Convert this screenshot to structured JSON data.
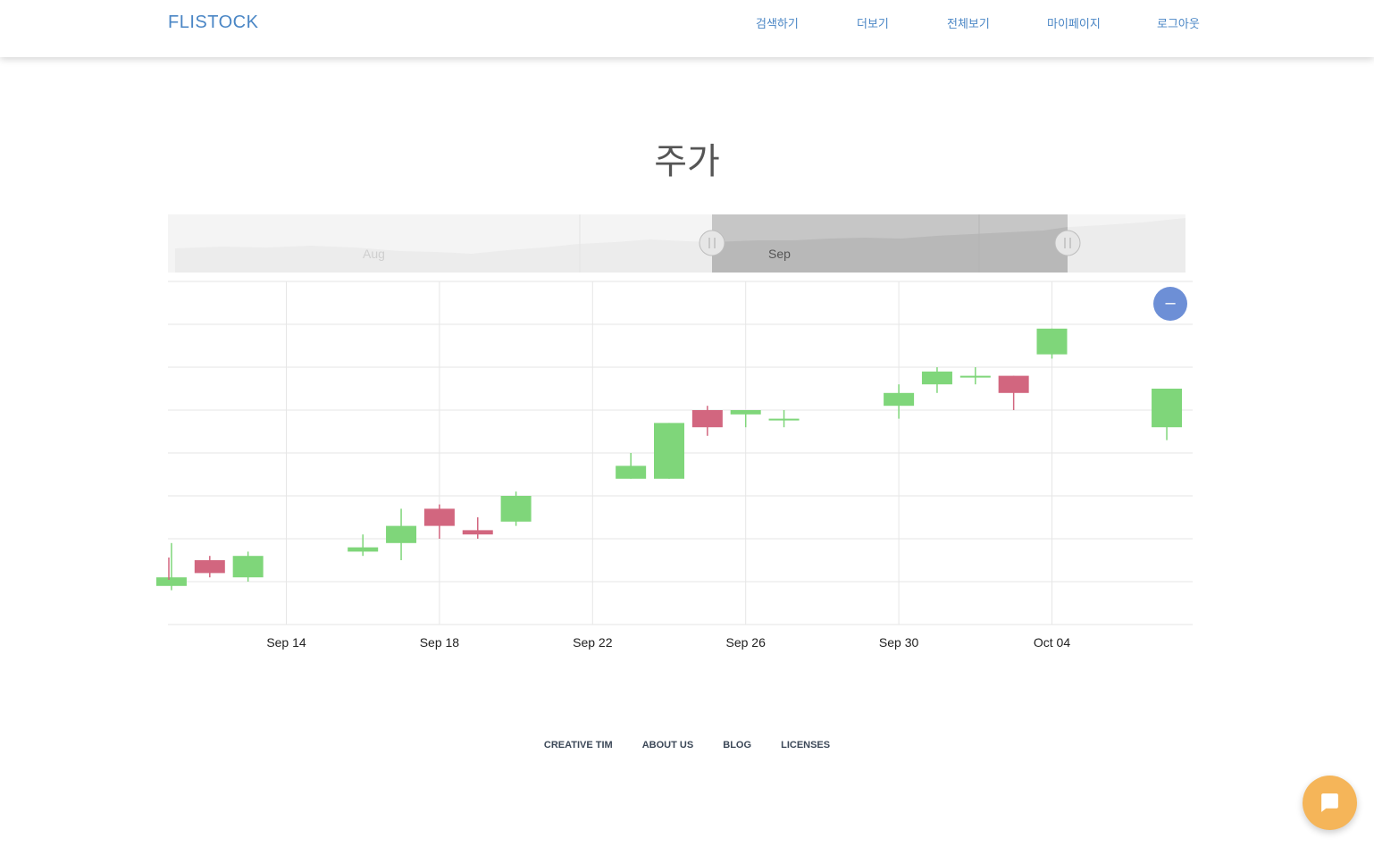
{
  "navbar": {
    "brand": "FLISTOCK",
    "items": [
      "검색하기",
      "더보기",
      "전체보기",
      "마이페이지",
      "로그아웃"
    ]
  },
  "page_title": "주가",
  "navigator": {
    "labels": [
      "Aug",
      "Sep"
    ]
  },
  "chart_data": {
    "type": "candlestick",
    "title": "",
    "x_ticks": [
      "Sep 14",
      "Sep 18",
      "Sep 22",
      "Sep 26",
      "Sep 30",
      "Oct 04"
    ],
    "grid": true,
    "up_color": "#7fd67a",
    "down_color": "#d2667f",
    "candles": [
      {
        "date": "Sep 11",
        "open": 2.9,
        "close": 3.1,
        "high": 3.9,
        "low": 2.8
      },
      {
        "date": "Sep 12",
        "open": 3.5,
        "close": 3.2,
        "high": 3.6,
        "low": 3.1
      },
      {
        "date": "Sep 13",
        "open": 3.1,
        "close": 3.6,
        "high": 3.7,
        "low": 3.0
      },
      {
        "date": "Sep 16",
        "open": 3.7,
        "close": 3.8,
        "high": 4.1,
        "low": 3.6
      },
      {
        "date": "Sep 17",
        "open": 3.9,
        "close": 4.3,
        "high": 4.7,
        "low": 3.5
      },
      {
        "date": "Sep 18",
        "open": 4.7,
        "close": 4.3,
        "high": 4.8,
        "low": 4.0
      },
      {
        "date": "Sep 19",
        "open": 4.2,
        "close": 4.1,
        "high": 4.5,
        "low": 4.0
      },
      {
        "date": "Sep 20",
        "open": 4.4,
        "close": 5.0,
        "high": 5.1,
        "low": 4.3
      },
      {
        "date": "Sep 23",
        "open": 5.4,
        "close": 5.7,
        "high": 6.0,
        "low": 5.4
      },
      {
        "date": "Sep 24",
        "open": 5.4,
        "close": 6.7,
        "high": 6.7,
        "low": 5.4
      },
      {
        "date": "Sep 25",
        "open": 7.0,
        "close": 6.6,
        "high": 7.1,
        "low": 6.4
      },
      {
        "date": "Sep 26",
        "open": 6.9,
        "close": 7.0,
        "high": 7.0,
        "low": 6.6
      },
      {
        "date": "Sep 27",
        "open": 6.8,
        "close": 6.8,
        "high": 7.0,
        "low": 6.6
      },
      {
        "date": "Sep 30",
        "open": 7.1,
        "close": 7.4,
        "high": 7.6,
        "low": 6.8
      },
      {
        "date": "Oct 01",
        "open": 7.6,
        "close": 7.9,
        "high": 8.0,
        "low": 7.4
      },
      {
        "date": "Oct 02",
        "open": 7.8,
        "close": 7.8,
        "high": 8.0,
        "low": 7.6
      },
      {
        "date": "Oct 03",
        "open": 7.8,
        "close": 7.4,
        "high": 7.8,
        "low": 7.0
      },
      {
        "date": "Oct 04",
        "open": 8.3,
        "close": 8.9,
        "high": 8.9,
        "low": 8.2
      },
      {
        "date": "Oct 07",
        "open": 6.6,
        "close": 7.5,
        "high": 7.5,
        "low": 6.3
      }
    ]
  },
  "zoom_button": {
    "label": "–"
  },
  "footer": {
    "links": [
      "CREATIVE TIM",
      "ABOUT US",
      "BLOG",
      "LICENSES"
    ]
  },
  "chat_button": {
    "icon": "chat-bubble-icon"
  }
}
